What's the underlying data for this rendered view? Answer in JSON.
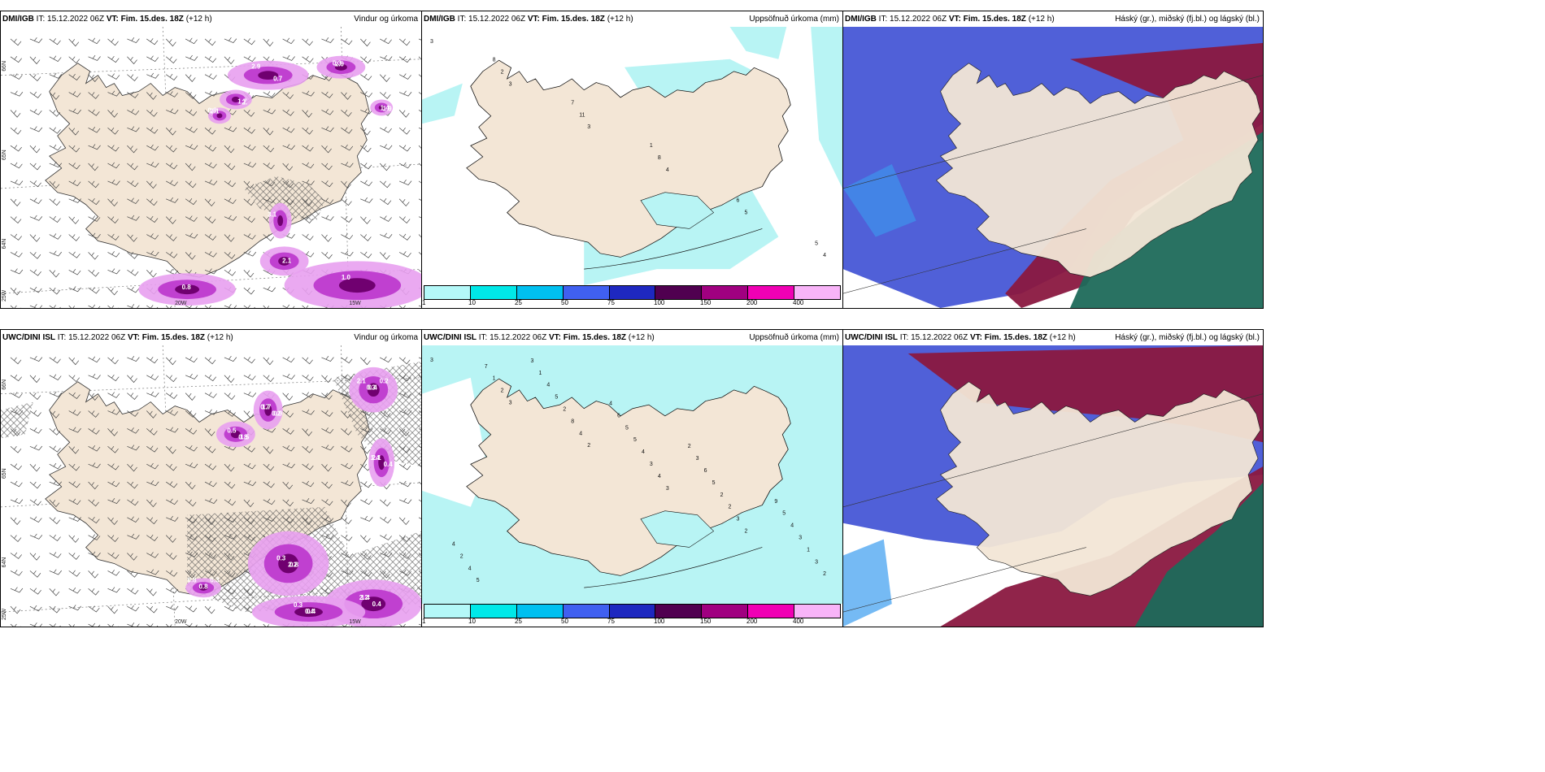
{
  "panels": [
    {
      "model": "DMI/IGB",
      "init_label": "IT:",
      "init": "15.12.2022 06Z",
      "valid_label": "VT:",
      "valid": "Fim. 15.des. 18Z",
      "lead": "(+12 h)",
      "field": "Vindur og úrkoma",
      "values": [
        "2.9",
        "2.9",
        "2.",
        "2.1",
        "1.9",
        "3.1",
        "2.1",
        "1.0",
        "0.8",
        "0.7",
        "0.3",
        "1.7",
        "0.8",
        "1.4"
      ],
      "grid_labels": [
        "66N",
        "65N",
        "64N",
        "25W",
        "20W",
        "15W"
      ]
    },
    {
      "model": "DMI/IGB",
      "init_label": "IT:",
      "init": "15.12.2022 06Z",
      "valid_label": "VT:",
      "valid": "Fim. 15.des. 18Z",
      "lead": "(+12 h)",
      "field": "Uppsöfnuð úrkoma (mm)",
      "values": [
        "3",
        "3",
        "3",
        "4",
        "5",
        "4",
        "2",
        "11",
        "8",
        "6",
        "5",
        "8",
        "7",
        "1"
      ]
    },
    {
      "model": "DMI/IGB",
      "init_label": "IT:",
      "init": "15.12.2022 06Z",
      "valid_label": "VT:",
      "valid": "Fim. 15.des. 18Z",
      "lead": "(+12 h)",
      "field": "Háský (gr.), miðský (fj.bl.) og lágský (bl.)"
    },
    {
      "model": "UWC/DINI ISL",
      "init_label": "IT:",
      "init": "15.12.2022 06Z",
      "valid_label": "VT:",
      "valid": "Fim. 15.des. 18Z",
      "lead": "(+12 h)",
      "field": "Vindur og úrkoma",
      "values": [
        "2.1",
        "1.7",
        "1.5",
        "2.1",
        "0.8",
        "1.4",
        "0.4",
        "0.8",
        "0.4",
        "0.9",
        "0.5",
        "0.4",
        "0.3",
        "0.4",
        "0.3",
        "0.8",
        "0.2",
        "0.7",
        "0.8",
        "1.4",
        "2.2",
        "2.2",
        "0.4",
        "0.3",
        "0.3",
        "0.2"
      ],
      "grid_labels": [
        "66N",
        "65N",
        "64N",
        "25W",
        "20W",
        "15W"
      ]
    },
    {
      "model": "UWC/DINI ISL",
      "init_label": "IT:",
      "init": "15.12.2022 06Z",
      "valid_label": "VT:",
      "valid": "Fim. 15.des. 18Z",
      "lead": "(+12 h)",
      "field": "Uppsöfnuð úrkoma (mm)",
      "values": [
        "3",
        "3",
        "2",
        "3",
        "2",
        "2",
        "2",
        "4",
        "4",
        "3",
        "3",
        "1",
        "8",
        "3",
        "2",
        "1",
        "7",
        "2",
        "4",
        "2",
        "3",
        "5",
        "5",
        "5",
        "5",
        "4",
        "4",
        "4",
        "5",
        "6",
        "5",
        "2",
        "1",
        "6",
        "3",
        "9",
        "4",
        "3",
        "4",
        "2"
      ]
    },
    {
      "model": "UWC/DINI ISL",
      "init_label": "IT:",
      "init": "15.12.2022 06Z",
      "valid_label": "VT:",
      "valid": "Fim. 15.des. 18Z",
      "lead": "(+12 h)",
      "field": "Háský (gr.), miðský (fj.bl.) og lágský (bl.)"
    }
  ],
  "colorbar": {
    "colors": [
      "#b4f8f8",
      "#00e8e8",
      "#00c0f0",
      "#4060f0",
      "#1e28c0",
      "#500050",
      "#a00080",
      "#f000b4",
      "#f8b4f8"
    ],
    "ticks": [
      "1",
      "10",
      "25",
      "50",
      "75",
      "100",
      "150",
      "200",
      "400"
    ]
  },
  "colors": {
    "land": "#f3e6d6",
    "precip_light": "#e8a0f0",
    "precip_mid": "#c040d0",
    "precip_dark": "#700070",
    "accum": "#b8f4f4",
    "high_cloud": "#4858d0",
    "mid_cloud": "#8a1840",
    "low_cloud": "#1e6a5a"
  }
}
